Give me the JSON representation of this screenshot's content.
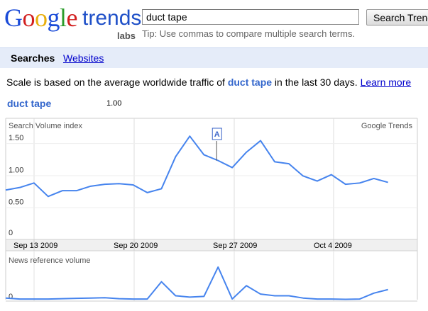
{
  "header": {
    "logo": {
      "letters": [
        "G",
        "o",
        "o",
        "g",
        "l",
        "e"
      ],
      "trends": "trends",
      "labs": "labs",
      "colors": [
        "#1a4bd8",
        "#d21f1f",
        "#e8ae0c",
        "#1a4bd8",
        "#2a9c2a",
        "#d21f1f"
      ]
    },
    "search": {
      "value": "duct tape",
      "button_label": "Search Trends",
      "tip": "Tip: Use commas to compare multiple search terms."
    }
  },
  "tabs": {
    "active": "Searches",
    "link": "Websites"
  },
  "scale": {
    "prefix": "Scale is based on the average worldwide traffic of ",
    "term": "duct tape",
    "suffix": " in the last 30 days.",
    "learn_more": "Learn more"
  },
  "legend": {
    "term": "duct tape",
    "value": "1.00"
  },
  "chart_data": [
    {
      "type": "line",
      "title": "Search Volume index",
      "source_label": "Google Trends",
      "series": [
        {
          "name": "duct tape",
          "color": "#4684ee",
          "values": [
            0.77,
            0.81,
            0.88,
            0.67,
            0.76,
            0.76,
            0.83,
            0.86,
            0.87,
            0.85,
            0.73,
            0.79,
            1.29,
            1.61,
            1.32,
            1.23,
            1.12,
            1.36,
            1.54,
            1.21,
            1.18,
            0.99,
            0.91,
            1.01,
            0.86,
            0.88,
            0.95,
            0.89
          ]
        }
      ],
      "yticks": [
        "1.50",
        "1.00",
        "0.50",
        "0"
      ],
      "ylim": [
        0,
        1.8
      ],
      "x_labels": [
        "Sep 13 2009",
        "Sep 20 2009",
        "Sep 27 2009",
        "Oct 4 2009"
      ],
      "annotation": {
        "label": "A",
        "date": "Sep 27 2009"
      },
      "grid": true
    },
    {
      "type": "line",
      "title": "News reference volume",
      "series": [
        {
          "name": "duct tape",
          "color": "#4684ee",
          "values": [
            0.05,
            0.02,
            0.02,
            0.02,
            0.03,
            0.04,
            0.05,
            0.06,
            0.03,
            0.02,
            0.02,
            0.55,
            0.12,
            0.08,
            0.1,
            1.0,
            0.02,
            0.43,
            0.17,
            0.12,
            0.12,
            0.05,
            0.02,
            0.02,
            0.01,
            0.02,
            0.2,
            0.31
          ]
        }
      ],
      "yticks": [
        "0"
      ],
      "grid": true
    }
  ]
}
